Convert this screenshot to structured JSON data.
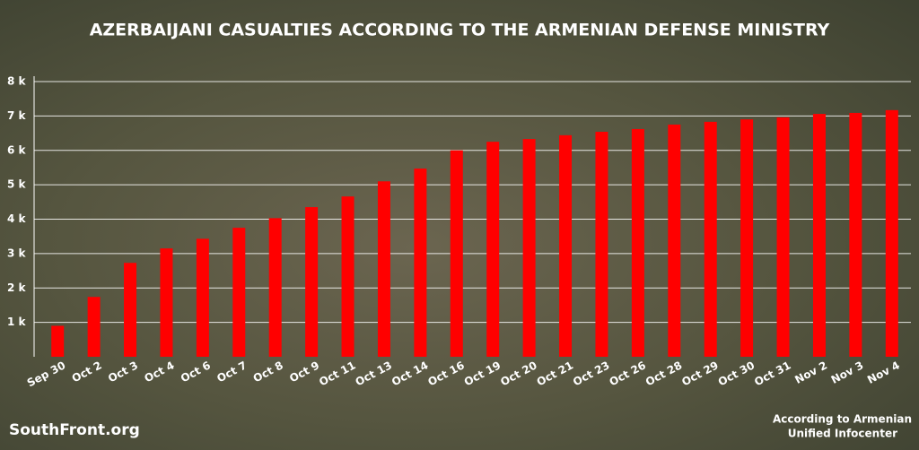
{
  "chart_data": {
    "type": "bar",
    "title": "AZERBAIJANI CASUALTIES ACCORDING TO THE ARMENIAN DEFENSE MINISTRY",
    "categories": [
      "Sep 30",
      "Oct 2",
      "Oct 3",
      "Oct 4",
      "Oct 6",
      "Oct 7",
      "Oct 8",
      "Oct 9",
      "Oct 11",
      "Oct 13",
      "Oct 14",
      "Oct 16",
      "Oct 19",
      "Oct 20",
      "Oct 21",
      "Oct 23",
      "Oct 26",
      "Oct 28",
      "Oct 29",
      "Oct 30",
      "Oct 31",
      "Nov 2",
      "Nov 3",
      "Nov 4"
    ],
    "values": [
      900,
      1740,
      2730,
      3150,
      3430,
      3750,
      4030,
      4350,
      4660,
      5100,
      5470,
      6000,
      6250,
      6330,
      6440,
      6540,
      6620,
      6750,
      6830,
      6900,
      6960,
      7060,
      7090,
      7170
    ],
    "color": "#ff0000",
    "ylim": [
      0,
      8000
    ],
    "yticks": [
      {
        "value": 1000,
        "label": "1 k"
      },
      {
        "value": 2000,
        "label": "2 k"
      },
      {
        "value": 3000,
        "label": "3 k"
      },
      {
        "value": 4000,
        "label": "4 k"
      },
      {
        "value": 5000,
        "label": "5 k"
      },
      {
        "value": 6000,
        "label": "6 k"
      },
      {
        "value": 7000,
        "label": "7 k"
      },
      {
        "value": 8000,
        "label": "8 k"
      }
    ],
    "grid": true,
    "watermark": "SouthFront.org",
    "source_note": [
      "According to Armenian",
      "Unified Infocenter"
    ]
  }
}
